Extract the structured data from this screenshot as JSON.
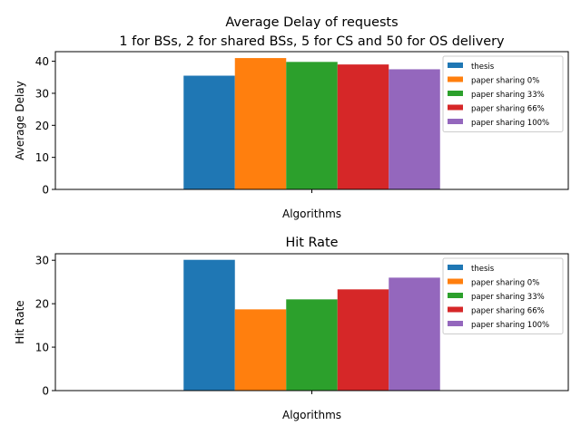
{
  "chart_data": [
    {
      "type": "bar",
      "title_lines": [
        "Average Delay of requests",
        "1 for BSs, 2 for shared BSs, 5 for CS and 50 for OS delivery"
      ],
      "xlabel": "Algorithms",
      "ylabel": "Average Delay",
      "ylim": [
        0,
        43
      ],
      "yticks": [
        0,
        10,
        20,
        30,
        40
      ],
      "categories": [
        ""
      ],
      "legend_position": "upper-right",
      "grid": false,
      "series": [
        {
          "name": "thesis",
          "values": [
            35.5
          ],
          "color": "#1f77b4"
        },
        {
          "name": "paper sharing 0%",
          "values": [
            41.0
          ],
          "color": "#ff7f0e"
        },
        {
          "name": "paper sharing 33%",
          "values": [
            39.8
          ],
          "color": "#2ca02c"
        },
        {
          "name": "paper sharing 66%",
          "values": [
            39.0
          ],
          "color": "#d62728"
        },
        {
          "name": "paper sharing 100%",
          "values": [
            37.5
          ],
          "color": "#9467bd"
        }
      ]
    },
    {
      "type": "bar",
      "title_lines": [
        "Hit Rate"
      ],
      "xlabel": "Algorithms",
      "ylabel": "Hit Rate",
      "ylim": [
        0,
        31.5
      ],
      "yticks": [
        0,
        10,
        20,
        30
      ],
      "categories": [
        ""
      ],
      "legend_position": "upper-right",
      "grid": false,
      "series": [
        {
          "name": "thesis",
          "values": [
            30.1
          ],
          "color": "#1f77b4"
        },
        {
          "name": "paper sharing 0%",
          "values": [
            18.7
          ],
          "color": "#ff7f0e"
        },
        {
          "name": "paper sharing 33%",
          "values": [
            21.0
          ],
          "color": "#2ca02c"
        },
        {
          "name": "paper sharing 66%",
          "values": [
            23.3
          ],
          "color": "#d62728"
        },
        {
          "name": "paper sharing 100%",
          "values": [
            26.0
          ],
          "color": "#9467bd"
        }
      ]
    }
  ]
}
